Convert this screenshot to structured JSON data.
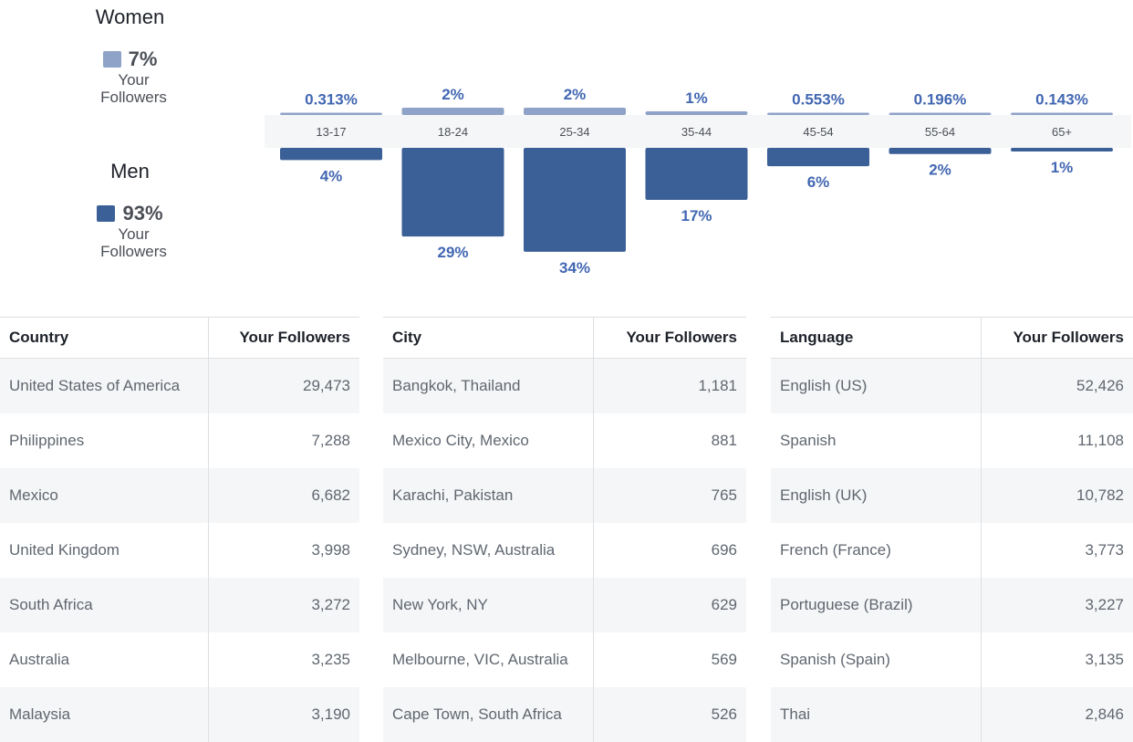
{
  "colors": {
    "women": "#8fa2c8",
    "men": "#3b5f97",
    "accent": "#4267b2"
  },
  "gender": {
    "women": {
      "title": "Women",
      "pct": "7%",
      "sub_line1": "Your",
      "sub_line2": "Followers"
    },
    "men": {
      "title": "Men",
      "pct": "93%",
      "sub_line1": "Your",
      "sub_line2": "Followers"
    }
  },
  "chart_data": {
    "type": "bar",
    "categories": [
      "13-17",
      "18-24",
      "25-34",
      "35-44",
      "45-54",
      "55-64",
      "65+"
    ],
    "series": [
      {
        "name": "Women",
        "values": [
          0.313,
          2,
          2,
          1,
          0.553,
          0.196,
          0.143
        ],
        "labels": [
          "0.313%",
          "2%",
          "2%",
          "1%",
          "0.553%",
          "0.196%",
          "0.143%"
        ]
      },
      {
        "name": "Men",
        "values": [
          4,
          29,
          34,
          17,
          6,
          2,
          1
        ],
        "labels": [
          "4%",
          "29%",
          "34%",
          "17%",
          "6%",
          "2%",
          "1%"
        ]
      }
    ]
  },
  "tables": [
    {
      "col1": "Country",
      "col2": "Your Followers",
      "rows": [
        [
          "United States of America",
          "29,473"
        ],
        [
          "Philippines",
          "7,288"
        ],
        [
          "Mexico",
          "6,682"
        ],
        [
          "United Kingdom",
          "3,998"
        ],
        [
          "South Africa",
          "3,272"
        ],
        [
          "Australia",
          "3,235"
        ],
        [
          "Malaysia",
          "3,190"
        ]
      ]
    },
    {
      "col1": "City",
      "col2": "Your Followers",
      "rows": [
        [
          "Bangkok, Thailand",
          "1,181"
        ],
        [
          "Mexico City, Mexico",
          "881"
        ],
        [
          "Karachi, Pakistan",
          "765"
        ],
        [
          "Sydney, NSW, Australia",
          "696"
        ],
        [
          "New York, NY",
          "629"
        ],
        [
          "Melbourne, VIC, Australia",
          "569"
        ],
        [
          "Cape Town, South Africa",
          "526"
        ]
      ]
    },
    {
      "col1": "Language",
      "col2": "Your Followers",
      "rows": [
        [
          "English (US)",
          "52,426"
        ],
        [
          "Spanish",
          "11,108"
        ],
        [
          "English (UK)",
          "10,782"
        ],
        [
          "French (France)",
          "3,773"
        ],
        [
          "Portuguese (Brazil)",
          "3,227"
        ],
        [
          "Spanish (Spain)",
          "3,135"
        ],
        [
          "Thai",
          "2,846"
        ]
      ]
    }
  ]
}
